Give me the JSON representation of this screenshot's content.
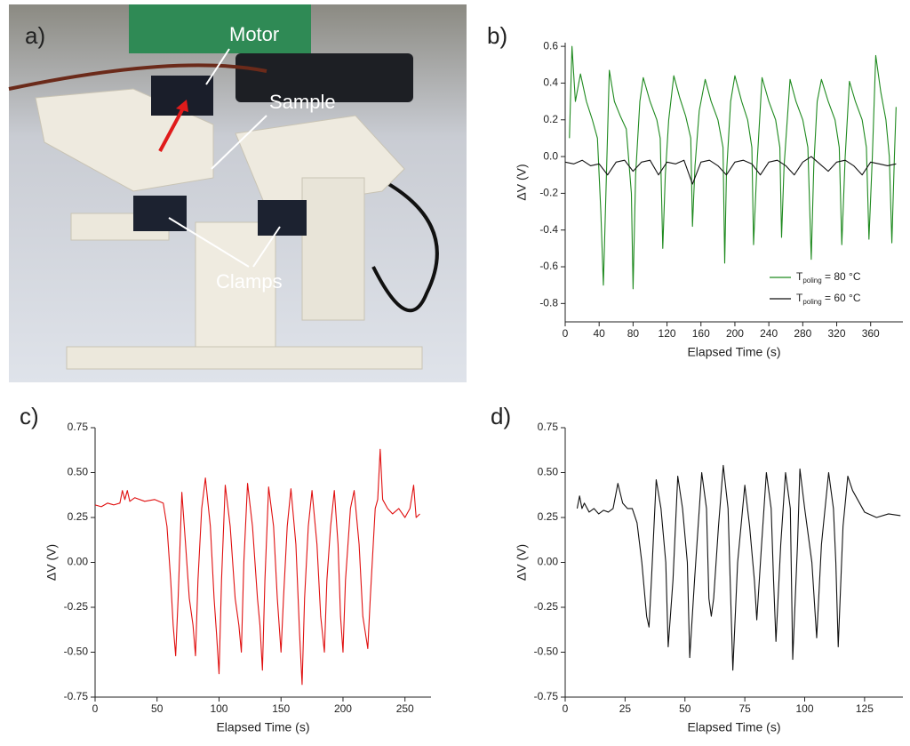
{
  "photo": {
    "panel_label": "a)",
    "labels": [
      "Motor",
      "Sample",
      "Clamps"
    ]
  },
  "chart_data": [
    {
      "type": "line",
      "panel_label": "b)",
      "x_label": "Elapsed Time (s)",
      "y_label": "ΔV (V)",
      "xlim": [
        0,
        398
      ],
      "xticks": [
        0,
        40,
        80,
        120,
        160,
        200,
        240,
        280,
        320,
        360
      ],
      "ylim": [
        -0.9,
        0.62
      ],
      "yticks": [
        -0.8,
        -0.6,
        -0.4,
        -0.2,
        {
          "value": 0,
          "label": "0.0"
        },
        0.2,
        0.4,
        0.6
      ],
      "legend": "lower right",
      "series": [
        {
          "name": "Tpoling = 80 °C",
          "color": "#1f8a1f",
          "x": [
            5,
            8,
            12,
            18,
            25,
            32,
            38,
            42,
            45,
            48,
            52,
            58,
            65,
            72,
            78,
            80,
            83,
            88,
            92,
            100,
            108,
            112,
            115,
            118,
            122,
            128,
            135,
            142,
            148,
            150,
            153,
            158,
            165,
            172,
            180,
            186,
            188,
            190,
            195,
            200,
            208,
            215,
            220,
            222,
            226,
            232,
            240,
            248,
            253,
            255,
            258,
            265,
            272,
            280,
            286,
            290,
            293,
            297,
            302,
            310,
            318,
            323,
            326,
            330,
            335,
            342,
            350,
            355,
            358,
            362,
            366,
            372,
            378,
            382,
            385,
            388,
            390
          ],
          "values": [
            0.1,
            0.6,
            0.3,
            0.45,
            0.3,
            0.2,
            0.1,
            -0.3,
            -0.7,
            -0.2,
            0.47,
            0.3,
            0.22,
            0.15,
            -0.2,
            -0.72,
            -0.1,
            0.3,
            0.43,
            0.3,
            0.2,
            0.1,
            -0.5,
            -0.1,
            0.2,
            0.44,
            0.32,
            0.22,
            0.1,
            -0.38,
            -0.05,
            0.25,
            0.42,
            0.3,
            0.2,
            0.05,
            -0.58,
            -0.1,
            0.3,
            0.44,
            0.3,
            0.2,
            0.05,
            -0.48,
            -0.05,
            0.43,
            0.3,
            0.2,
            0.05,
            -0.44,
            -0.05,
            0.42,
            0.3,
            0.2,
            0.05,
            -0.56,
            -0.05,
            0.3,
            0.42,
            0.3,
            0.2,
            0.05,
            -0.48,
            0.0,
            0.41,
            0.3,
            0.2,
            0.05,
            -0.45,
            0.0,
            0.55,
            0.35,
            0.2,
            0.0,
            -0.47,
            0.0,
            0.27
          ]
        },
        {
          "name": "Tpoling = 60 °C",
          "color": "#111111",
          "x": [
            0,
            10,
            20,
            30,
            40,
            50,
            60,
            70,
            80,
            90,
            100,
            110,
            120,
            130,
            140,
            150,
            160,
            170,
            180,
            190,
            200,
            210,
            220,
            230,
            240,
            250,
            260,
            270,
            280,
            290,
            300,
            310,
            320,
            330,
            340,
            350,
            360,
            370,
            380,
            390
          ],
          "values": [
            -0.03,
            -0.04,
            -0.02,
            -0.05,
            -0.04,
            -0.1,
            -0.03,
            -0.02,
            -0.08,
            -0.03,
            -0.02,
            -0.1,
            -0.03,
            -0.04,
            -0.02,
            -0.15,
            -0.03,
            -0.02,
            -0.05,
            -0.1,
            -0.03,
            -0.02,
            -0.04,
            -0.1,
            -0.03,
            -0.02,
            -0.05,
            -0.1,
            -0.03,
            0.0,
            -0.04,
            -0.08,
            -0.03,
            -0.02,
            -0.05,
            -0.1,
            -0.03,
            -0.04,
            -0.05,
            -0.04
          ]
        }
      ]
    },
    {
      "type": "line",
      "panel_label": "c)",
      "x_label": "Elapsed Time (s)",
      "y_label": "ΔV (V)",
      "xlim": [
        0,
        271
      ],
      "xticks": [
        0,
        50,
        100,
        150,
        200,
        250
      ],
      "ylim": [
        -0.75,
        0.75
      ],
      "yticks": [
        -0.75,
        {
          "value": -0.5,
          "label": "-0.50"
        },
        -0.25,
        {
          "value": 0,
          "label": "0.00"
        },
        0.25,
        {
          "value": 0.5,
          "label": "0.50"
        },
        0.75
      ],
      "series": [
        {
          "color": "#e01010",
          "x": [
            0,
            5,
            10,
            15,
            20,
            22,
            24,
            26,
            28,
            32,
            40,
            48,
            55,
            58,
            61,
            63,
            65,
            67,
            70,
            73,
            76,
            79,
            81,
            83,
            86,
            89,
            93,
            96,
            98,
            100,
            102,
            105,
            109,
            113,
            116,
            118,
            120,
            123,
            127,
            131,
            133,
            135,
            137,
            140,
            144,
            147,
            150,
            152,
            155,
            158,
            162,
            165,
            167,
            169,
            172,
            175,
            179,
            182,
            185,
            187,
            190,
            193,
            196,
            198,
            200,
            202,
            206,
            209,
            213,
            216,
            220,
            222,
            226,
            228,
            230,
            232,
            236,
            240,
            245,
            250,
            254,
            257,
            259,
            262
          ],
          "values": [
            0.32,
            0.31,
            0.33,
            0.32,
            0.33,
            0.4,
            0.35,
            0.4,
            0.34,
            0.36,
            0.34,
            0.35,
            0.33,
            0.2,
            -0.1,
            -0.35,
            -0.52,
            -0.2,
            0.39,
            0.1,
            -0.2,
            -0.35,
            -0.52,
            -0.1,
            0.3,
            0.47,
            0.2,
            -0.2,
            -0.4,
            -0.62,
            -0.1,
            0.43,
            0.2,
            -0.2,
            -0.35,
            -0.5,
            0.0,
            0.44,
            0.2,
            -0.2,
            -0.35,
            -0.6,
            -0.1,
            0.42,
            0.2,
            -0.2,
            -0.5,
            -0.2,
            0.2,
            0.41,
            0.1,
            -0.4,
            -0.68,
            -0.2,
            0.2,
            0.4,
            0.1,
            -0.3,
            -0.5,
            -0.1,
            0.2,
            0.4,
            0.1,
            -0.3,
            -0.5,
            -0.1,
            0.3,
            0.4,
            0.1,
            -0.3,
            -0.48,
            -0.2,
            0.3,
            0.35,
            0.63,
            0.35,
            0.3,
            0.27,
            0.3,
            0.25,
            0.3,
            0.43,
            0.25,
            0.27
          ]
        }
      ]
    },
    {
      "type": "line",
      "panel_label": "d)",
      "x_label": "Elapsed Time (s)",
      "y_label": "ΔV (V)",
      "xlim": [
        0,
        141
      ],
      "xticks": [
        0,
        25,
        50,
        75,
        100,
        125
      ],
      "ylim": [
        -0.75,
        0.75
      ],
      "yticks": [
        -0.75,
        {
          "value": -0.5,
          "label": "-0.50"
        },
        -0.25,
        {
          "value": 0,
          "label": "0.00"
        },
        0.25,
        {
          "value": 0.5,
          "label": "0.50"
        },
        0.75
      ],
      "series": [
        {
          "color": "#111111",
          "x": [
            5,
            6,
            7,
            8,
            10,
            12,
            14,
            16,
            18,
            20,
            22,
            24,
            26,
            28,
            30,
            32,
            34,
            35,
            36,
            38,
            40,
            42,
            43,
            45,
            47,
            49,
            51,
            52,
            54,
            57,
            59,
            60,
            61,
            62,
            64,
            66,
            68,
            70,
            72,
            75,
            77,
            79,
            80,
            82,
            84,
            86,
            87,
            88,
            90,
            92,
            94,
            95,
            97,
            98,
            100,
            103,
            105,
            107,
            110,
            112,
            113,
            114,
            116,
            118,
            120,
            125,
            130,
            135,
            140
          ],
          "values": [
            0.3,
            0.37,
            0.3,
            0.33,
            0.28,
            0.3,
            0.27,
            0.29,
            0.28,
            0.3,
            0.44,
            0.33,
            0.3,
            0.3,
            0.22,
            0,
            -0.3,
            -0.36,
            -0.1,
            0.46,
            0.3,
            0,
            -0.47,
            -0.1,
            0.48,
            0.3,
            0,
            -0.53,
            -0.1,
            0.5,
            0.3,
            -0.2,
            -0.3,
            -0.2,
            0.2,
            0.54,
            0.3,
            -0.6,
            0,
            0.43,
            0.2,
            -0.1,
            -0.32,
            0.1,
            0.5,
            0.3,
            -0.1,
            -0.44,
            0.1,
            0.5,
            0.3,
            -0.54,
            0.1,
            0.52,
            0.3,
            0.0,
            -0.42,
            0.1,
            0.5,
            0.3,
            0,
            -0.47,
            0.2,
            0.48,
            0.4,
            0.28,
            0.25,
            0.27,
            0.26
          ]
        }
      ]
    }
  ]
}
